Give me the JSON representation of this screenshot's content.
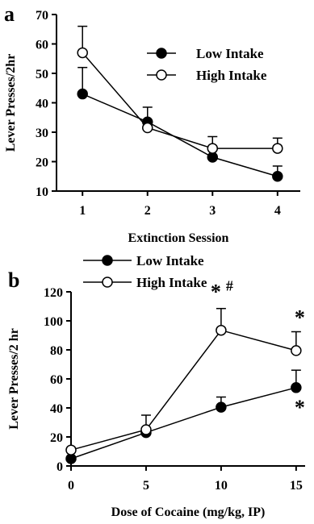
{
  "chart_data": [
    {
      "panel_label": "a",
      "type": "line",
      "xlabel": "Extinction Session",
      "ylabel": "Lever Presses/2hr",
      "x": [
        1,
        2,
        3,
        4
      ],
      "xticks": [
        "1",
        "2",
        "3",
        "4"
      ],
      "ylim": [
        10,
        70
      ],
      "yticks": [
        "10",
        "20",
        "30",
        "40",
        "50",
        "60",
        "70"
      ],
      "legend_position": "top-right",
      "series": [
        {
          "name": "Low Intake",
          "marker": "filled-circle",
          "values": [
            43,
            33.5,
            21.5,
            15
          ],
          "error": [
            9,
            5,
            0,
            3.5
          ]
        },
        {
          "name": "High Intake",
          "marker": "open-circle",
          "values": [
            57,
            31.5,
            24.5,
            24.5
          ],
          "error": [
            9,
            2,
            4,
            3.5
          ]
        }
      ]
    },
    {
      "panel_label": "b",
      "type": "line",
      "xlabel": "Dose of Cocaine (mg/kg, IP)",
      "ylabel": "Lever Presses/2 hr",
      "x": [
        0,
        5,
        10,
        15
      ],
      "xticks": [
        "0",
        "5",
        "10",
        "15"
      ],
      "ylim": [
        0,
        120
      ],
      "yticks": [
        "0",
        "20",
        "40",
        "60",
        "80",
        "100",
        "120"
      ],
      "legend_position": "top-left",
      "series": [
        {
          "name": "Low Intake",
          "marker": "filled-circle",
          "values": [
            5,
            23,
            40.5,
            54
          ],
          "error": [
            0,
            0,
            7,
            12
          ]
        },
        {
          "name": "High Intake",
          "marker": "open-circle",
          "values": [
            11,
            25,
            93.5,
            79.5
          ],
          "error": [
            0,
            10,
            15,
            13
          ]
        }
      ],
      "annotations": [
        {
          "text": "*",
          "x": 10,
          "series": "High Intake"
        },
        {
          "text": "#",
          "x": 10,
          "series": "High Intake"
        },
        {
          "text": "*",
          "x": 15,
          "series": "High Intake"
        },
        {
          "text": "*",
          "x": 15,
          "series": "Low Intake"
        }
      ]
    }
  ]
}
